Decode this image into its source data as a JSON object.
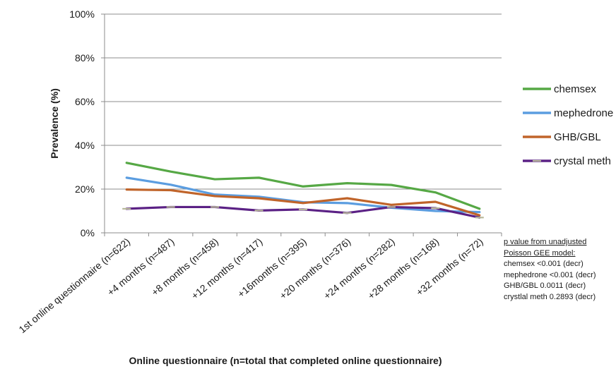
{
  "chart_data": {
    "type": "line",
    "title": "",
    "xlabel": "Online questionnaire (n=total that completed  online questionnaire)",
    "ylabel": "Prevalence (%)",
    "ylim": [
      0,
      100
    ],
    "yticks": [
      "0%",
      "20%",
      "40%",
      "60%",
      "80%",
      "100%"
    ],
    "grid": true,
    "legend_position": "right",
    "categories": [
      "1st online questionnaire (n=622)",
      "+4 months (n=487)",
      "+8 months (n=458)",
      "+12 months (n=417)",
      "+16months  (n=395)",
      "+20 months (n=376)",
      "+24 months (n=282)",
      "+28 months (n=168)",
      "+32 months (n=72)"
    ],
    "series": [
      {
        "name": "chemsex",
        "color": "#56a845",
        "values": [
          32,
          28,
          24.5,
          25.2,
          21.2,
          22.7,
          21.9,
          18.5,
          11
        ]
      },
      {
        "name": "mephedrone",
        "color": "#5b9de0",
        "values": [
          25.2,
          22,
          17.5,
          16.5,
          14,
          13.6,
          11.5,
          10,
          9.5
        ]
      },
      {
        "name": "GHB/GBL",
        "color": "#c0642a",
        "values": [
          19.8,
          19.5,
          16.8,
          15.8,
          13.6,
          15.8,
          12.8,
          14.2,
          8
        ]
      },
      {
        "name": "crystal meth",
        "color": "#5b2185",
        "values": [
          11,
          11.8,
          11.8,
          10.2,
          10.7,
          9.1,
          11.8,
          11.3,
          7
        ]
      }
    ]
  },
  "note": {
    "title_line1": "p value from unadjusted",
    "title_line2": "Poisson GEE model:",
    "lines": [
      "chemsex <0.001 (decr)",
      "mephedrone <0.001 (decr)",
      "GHB/GBL 0.0011 (decr)",
      "crystlal meth 0.2893 (decr)"
    ]
  }
}
